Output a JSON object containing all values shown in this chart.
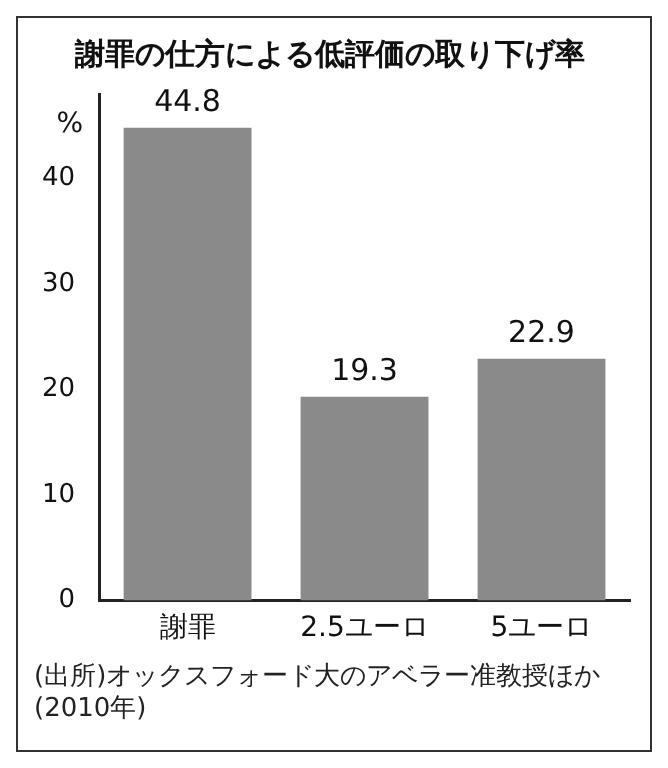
{
  "chart_data": {
    "type": "bar",
    "title": "謝罪の仕方による低評価の取り下げ率",
    "ylabel": "%",
    "categories": [
      "謝罪",
      "2.5ユーロ",
      "5ユーロ"
    ],
    "values": [
      44.8,
      19.3,
      22.9
    ],
    "color": "#8a8a8a",
    "ylim": [
      0,
      48
    ],
    "yticks": [
      0,
      10,
      20,
      30,
      40
    ],
    "grid": false,
    "legend": false,
    "data_labels": true,
    "annotations": [
      "(出所)オックスフォード大のアベラー准教授ほか(2010年)"
    ]
  }
}
